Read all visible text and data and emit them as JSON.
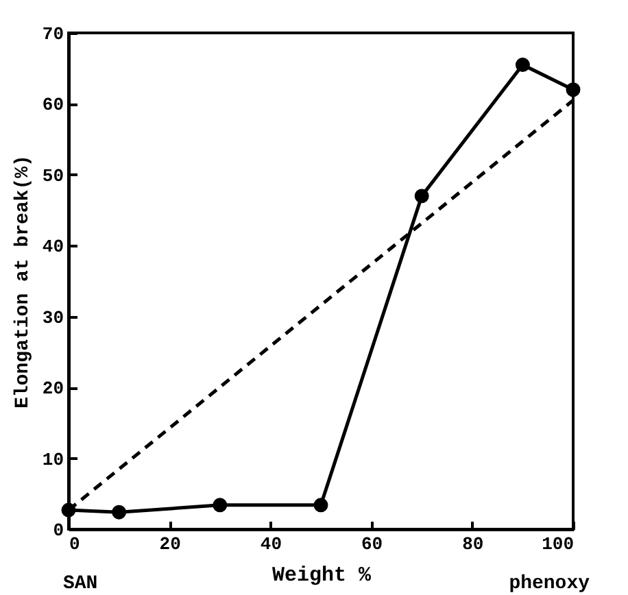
{
  "chart_data": {
    "type": "line",
    "xlabel": "Weight %",
    "ylabel": "Elongation at break(%)",
    "xlim": [
      0,
      100
    ],
    "xticks": [
      0,
      20,
      40,
      60,
      80,
      100
    ],
    "ylim": [
      0,
      70
    ],
    "yticks": [
      0,
      10,
      20,
      30,
      40,
      50,
      60,
      70
    ],
    "grid": false,
    "annotations": [
      "SAN",
      "phenoxy"
    ],
    "series": [
      {
        "color": "#000000",
        "marker": "circle",
        "line_style": "solid",
        "x": [
          0,
          10,
          30,
          50,
          70,
          90,
          100
        ],
        "values": [
          2.7,
          2.4,
          3.4,
          3.4,
          47,
          65.5,
          62
        ]
      },
      {
        "color": "#000000",
        "marker": "none",
        "line_style": "dashed",
        "x": [
          0,
          100
        ],
        "values": [
          2.7,
          60.5
        ]
      }
    ]
  }
}
